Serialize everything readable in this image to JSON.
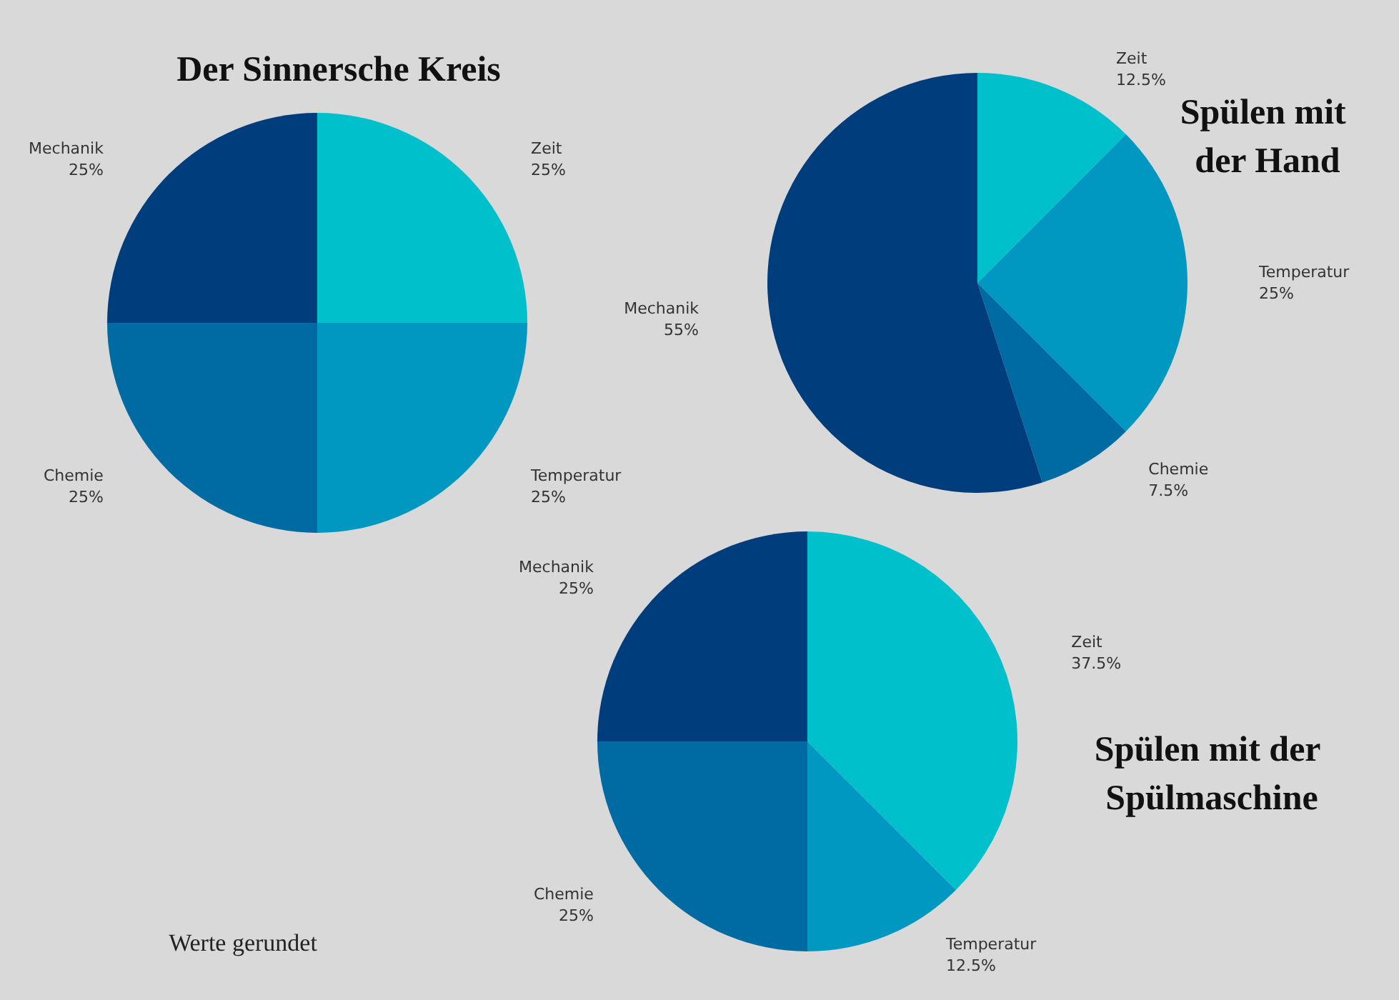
{
  "chart_data": [
    {
      "type": "pie",
      "title": "Der Sinnersche Kreis",
      "categories": [
        "Zeit",
        "Temperatur",
        "Chemie",
        "Mechanik"
      ],
      "values": [
        25,
        25,
        25,
        25
      ],
      "value_labels": [
        "25%",
        "25%",
        "25%",
        "25%"
      ],
      "colors": [
        "#00c0cc",
        "#0097c1",
        "#006aa2",
        "#003d7d"
      ]
    },
    {
      "type": "pie",
      "title": "Spülen mit der Hand",
      "categories": [
        "Zeit",
        "Temperatur",
        "Chemie",
        "Mechanik"
      ],
      "values": [
        12.5,
        25,
        7.5,
        55
      ],
      "value_labels": [
        "12.5%",
        "25%",
        "7.5%",
        "55%"
      ],
      "colors": [
        "#00c0cc",
        "#0097c1",
        "#006aa2",
        "#003d7d"
      ]
    },
    {
      "type": "pie",
      "title": "Spülen mit der Spülmaschine",
      "categories": [
        "Zeit",
        "Temperatur",
        "Chemie",
        "Mechanik"
      ],
      "values": [
        37.5,
        12.5,
        25,
        25
      ],
      "value_labels": [
        "37.5%",
        "12.5%",
        "25%",
        "25%"
      ],
      "colors": [
        "#00c0cc",
        "#0097c1",
        "#006aa2",
        "#003d7d"
      ],
      "annotations": [
        "Werte gerundet"
      ]
    }
  ]
}
